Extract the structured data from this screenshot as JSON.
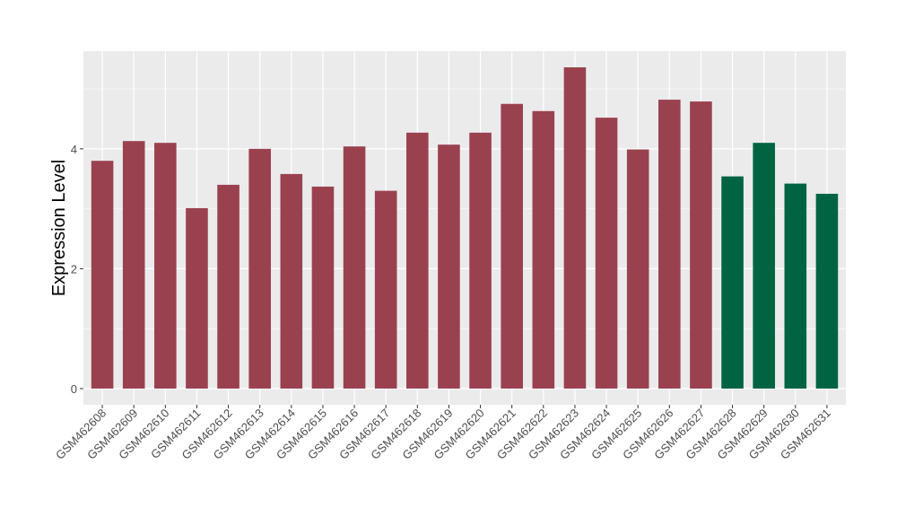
{
  "chart_data": {
    "type": "bar",
    "title": "",
    "xlabel": "",
    "ylabel": "Expression Level",
    "ylim": [
      -0.27,
      5.63
    ],
    "yticks": [
      0,
      2,
      4
    ],
    "grid": true,
    "categories": [
      "GSM462608",
      "GSM462609",
      "GSM462610",
      "GSM462611",
      "GSM462612",
      "GSM462613",
      "GSM462614",
      "GSM462615",
      "GSM462616",
      "GSM462617",
      "GSM462618",
      "GSM462619",
      "GSM462620",
      "GSM462621",
      "GSM462622",
      "GSM462623",
      "GSM462624",
      "GSM462625",
      "GSM462626",
      "GSM462627",
      "GSM462628",
      "GSM462629",
      "GSM462630",
      "GSM462631"
    ],
    "values": [
      3.8,
      4.13,
      4.1,
      3.01,
      3.4,
      4.0,
      3.58,
      3.37,
      4.04,
      3.3,
      4.27,
      4.07,
      4.27,
      4.75,
      4.63,
      5.36,
      4.52,
      3.99,
      4.82,
      4.79,
      3.54,
      4.1,
      3.42,
      3.25
    ],
    "groups": [
      "a",
      "a",
      "a",
      "a",
      "a",
      "a",
      "a",
      "a",
      "a",
      "a",
      "a",
      "a",
      "a",
      "a",
      "a",
      "a",
      "a",
      "a",
      "a",
      "a",
      "b",
      "b",
      "b",
      "b"
    ],
    "colors": {
      "a": "#9A4150",
      "b": "#006442"
    },
    "panel_background": "#EBEBEB"
  }
}
